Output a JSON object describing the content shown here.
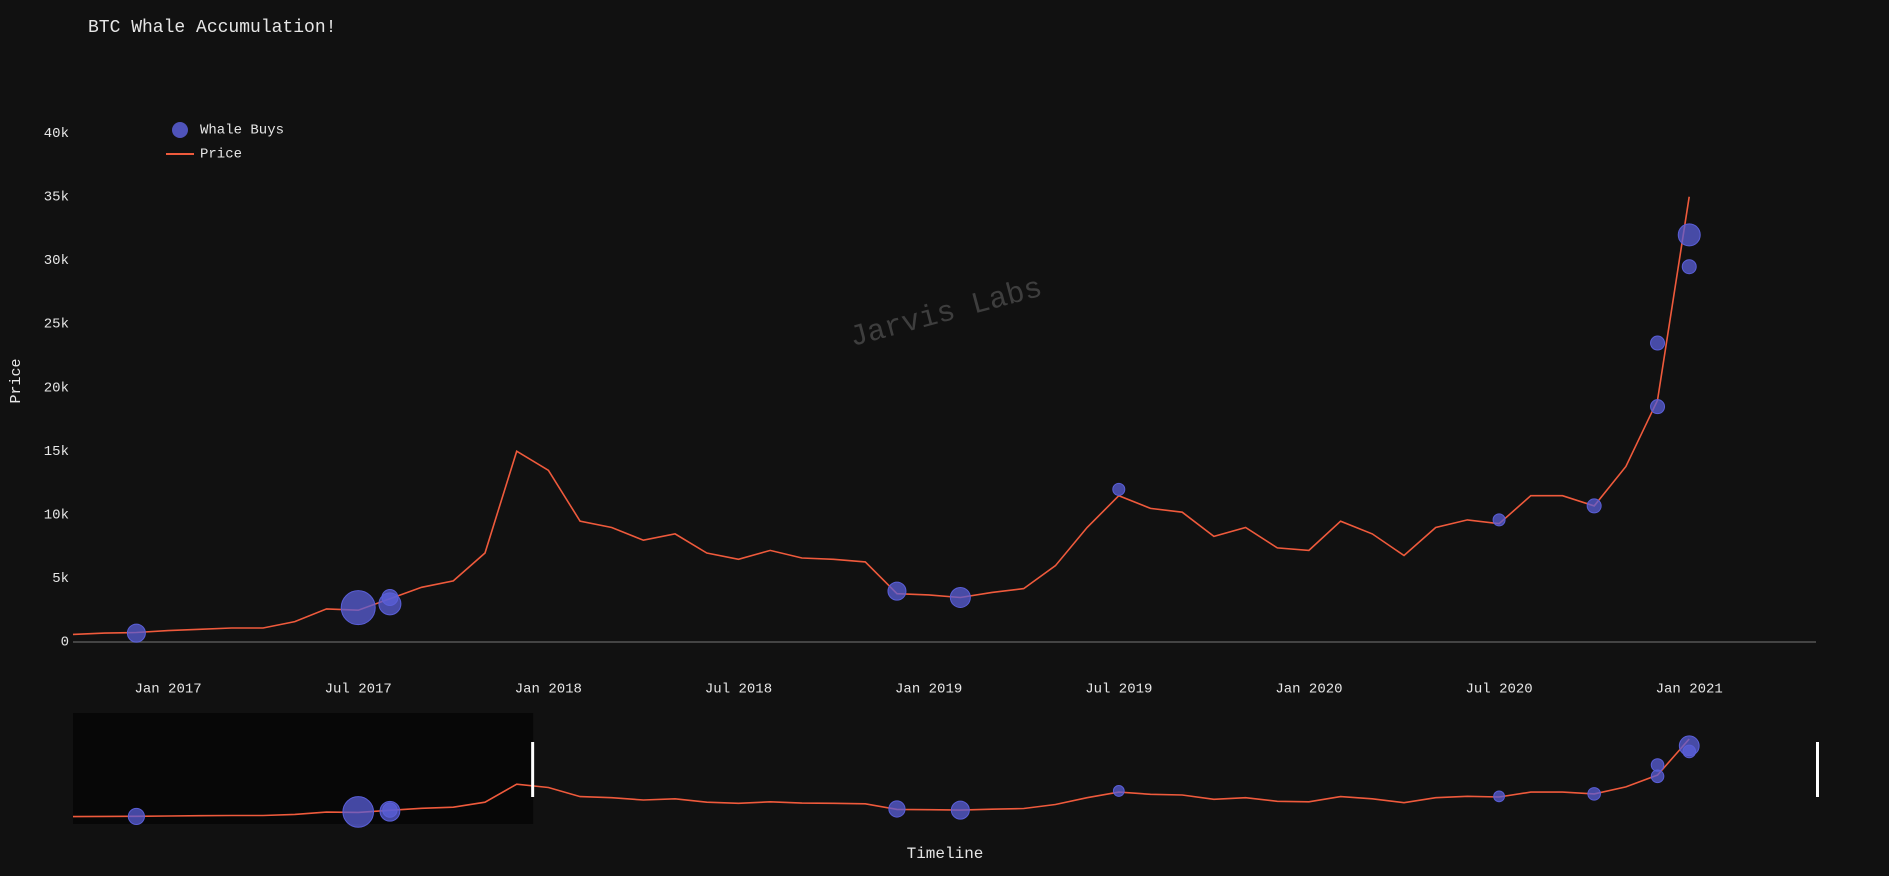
{
  "chart_data": {
    "type": "line",
    "title": "BTC Whale Accumulation!",
    "x_label": "Timeline",
    "y_label": "Price",
    "watermark": "Jarvis Labs",
    "legend": "top-left",
    "grid": false,
    "xlim": [
      "2016-10",
      "2021-05"
    ],
    "xticks": [
      {
        "value": "2017-01",
        "label": "Jan 2017"
      },
      {
        "value": "2017-07",
        "label": "Jul 2017"
      },
      {
        "value": "2018-01",
        "label": "Jan 2018"
      },
      {
        "value": "2018-07",
        "label": "Jul 2018"
      },
      {
        "value": "2019-01",
        "label": "Jan 2019"
      },
      {
        "value": "2019-07",
        "label": "Jul 2019"
      },
      {
        "value": "2020-01",
        "label": "Jan 2020"
      },
      {
        "value": "2020-07",
        "label": "Jul 2020"
      },
      {
        "value": "2021-01",
        "label": "Jan 2021"
      }
    ],
    "ylim": [
      0,
      43000
    ],
    "yticks": [
      0,
      {
        "value": 5000,
        "label": "5k"
      },
      {
        "value": 10000,
        "label": "10k"
      },
      {
        "value": 15000,
        "label": "15k"
      },
      {
        "value": 20000,
        "label": "20k"
      },
      {
        "value": 25000,
        "label": "25k"
      },
      {
        "value": 30000,
        "label": "30k"
      },
      {
        "value": 35000,
        "label": "35k"
      },
      {
        "value": 40000,
        "label": "40k"
      }
    ],
    "x": [
      "2016-10",
      "2016-11",
      "2016-12",
      "2017-01",
      "2017-02",
      "2017-03",
      "2017-04",
      "2017-05",
      "2017-06",
      "2017-07",
      "2017-08",
      "2017-09",
      "2017-10",
      "2017-11",
      "2017-12",
      "2018-01",
      "2018-02",
      "2018-03",
      "2018-04",
      "2018-05",
      "2018-06",
      "2018-07",
      "2018-08",
      "2018-09",
      "2018-10",
      "2018-11",
      "2018-12",
      "2019-01",
      "2019-02",
      "2019-03",
      "2019-04",
      "2019-05",
      "2019-06",
      "2019-07",
      "2019-08",
      "2019-09",
      "2019-10",
      "2019-11",
      "2019-12",
      "2020-01",
      "2020-02",
      "2020-03",
      "2020-04",
      "2020-05",
      "2020-06",
      "2020-07",
      "2020-08",
      "2020-09",
      "2020-10",
      "2020-11",
      "2020-12",
      "2021-01"
    ],
    "series": [
      {
        "name": "Price",
        "type": "line",
        "color": "#ef5a3c",
        "values": [
          600,
          700,
          750,
          900,
          1000,
          1100,
          1100,
          1600,
          2600,
          2500,
          3400,
          4300,
          4800,
          7000,
          15000,
          13500,
          9500,
          9000,
          8000,
          8500,
          7000,
          6500,
          7200,
          6600,
          6500,
          6300,
          3800,
          3700,
          3500,
          3900,
          4200,
          6000,
          9000,
          11500,
          10500,
          10200,
          8300,
          9000,
          7400,
          7200,
          9500,
          8500,
          6800,
          9000,
          9600,
          9300,
          11500,
          11500,
          10700,
          13800,
          19000,
          35000
        ]
      },
      {
        "name": "Whale Buys",
        "type": "scatter",
        "color": "#5a5fd8",
        "x": [
          "2016-12",
          "2017-07",
          "2017-08",
          "2017-08",
          "2018-12",
          "2019-02",
          "2019-07",
          "2020-07",
          "2020-10",
          "2020-12",
          "2020-12",
          "2021-01",
          "2021-01"
        ],
        "values": [
          700,
          2700,
          3000,
          3500,
          4000,
          3500,
          12000,
          9600,
          10700,
          18500,
          23500,
          29500,
          32000
        ],
        "sizes": [
          18,
          34,
          22,
          16,
          18,
          20,
          12,
          12,
          14,
          14,
          14,
          14,
          22
        ]
      }
    ]
  }
}
